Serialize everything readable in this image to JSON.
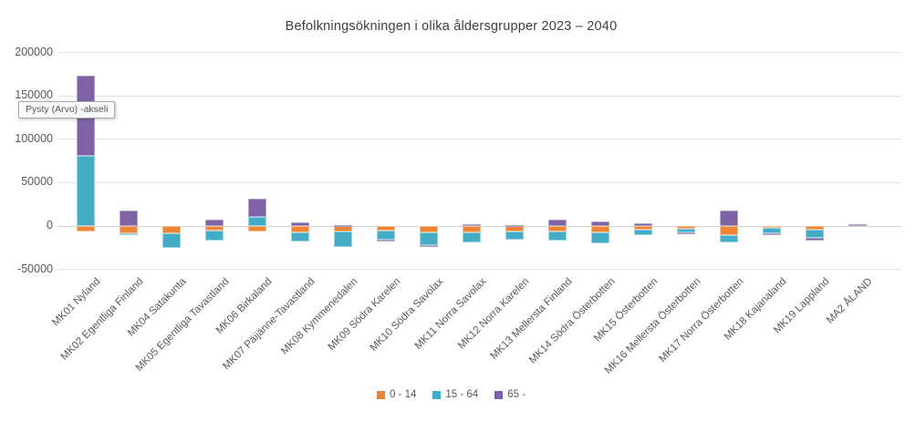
{
  "tooltip": {
    "text": "Pysty (Arvo)  -akseli"
  },
  "colors": {
    "background": "#ffffff",
    "gridline": "#e2e2e2",
    "axis_text": "#595959",
    "title_text": "#3f3f3f"
  },
  "chart_data": {
    "type": "bar",
    "stacked": true,
    "title": "Befolkningsökningen i olika åldersgrupper 2023 – 2040",
    "xlabel": "",
    "ylabel": "",
    "ylim": [
      -50000,
      200000
    ],
    "yticks": [
      200000,
      150000,
      100000,
      50000,
      0,
      -50000
    ],
    "grid": true,
    "legend_position": "bottom",
    "categories": [
      "MK01 Nyland",
      "MK02 Egentliga Finland",
      "MK04 Satakunta",
      "MK05 Egentliga Tavastland",
      "MK06 Birkaland",
      "MK07 Päijänne-Tavastland",
      "MK08 Kymmenedalen",
      "MK09 Södra Karelen",
      "MK10 Södra Savolax",
      "MK11 Norra Savolax",
      "MK12 Norra Karelen",
      "MK13 Mellersta Finland",
      "MK14 Södra Österbotten",
      "MK15 Österbotten",
      "MK16 Mellersta Österbotten",
      "MK17 Norra Österbotten",
      "MK18 Kajanaland",
      "MK19 Lappland",
      "MA2 ÅLAND"
    ],
    "series": [
      {
        "name": "0 - 14",
        "color": "#ee8435",
        "border_color": "#f8c091",
        "values": [
          -6000,
          -8000,
          -8000,
          -5000,
          -6500,
          -7000,
          -6000,
          -5000,
          -7000,
          -7000,
          -6000,
          -6500,
          -7000,
          -4500,
          -3500,
          -10500,
          -2000,
          -4000,
          0
        ]
      },
      {
        "name": "15 - 64",
        "color": "#45acc5",
        "border_color": "#9ad4e2",
        "values": [
          81000,
          -3000,
          -17000,
          -12000,
          10000,
          -10500,
          -18500,
          -10500,
          -15000,
          -12000,
          -10000,
          -10000,
          -12500,
          -6500,
          -4000,
          -8000,
          -6500,
          -10000,
          0
        ]
      },
      {
        "name": "65 -",
        "color": "#7d63a5",
        "border_color": "#b4a3c9",
        "values": [
          92000,
          18000,
          0,
          7000,
          22000,
          4500,
          1500,
          -1500,
          -2000,
          2500,
          1000,
          7000,
          5000,
          3500,
          -1500,
          17500,
          -2000,
          -2500,
          2500
        ]
      }
    ]
  }
}
